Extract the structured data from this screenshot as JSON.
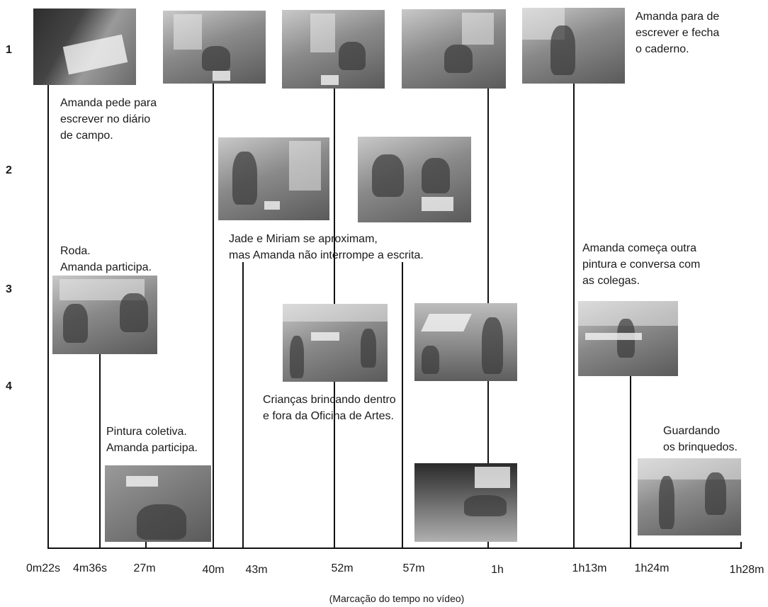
{
  "row_labels": [
    "1",
    "2",
    "3",
    "4"
  ],
  "time_ticks": [
    "0m22s",
    "4m36s",
    "27m",
    "40m",
    "43m",
    "52m",
    "57m",
    "1h",
    "1h13m",
    "1h24m",
    "1h28m"
  ],
  "captions": [
    "Amanda pede para\nescrever no diário\nde campo.",
    "Amanda para de\nescrever e fecha\no caderno.",
    "Jade e Miriam se aproximam,\nmas Amanda não interrompe a escrita.",
    "Roda.\nAmanda participa.",
    "Amanda começa outra\npintura e conversa com\nas colegas.",
    "Crianças brincando dentro\ne fora da Oficina de Artes.",
    "Pintura coletiva.\nAmanda participa.",
    "Guardando\nos brinquedos."
  ],
  "footnote": "(Marcação do tempo no vídeo)"
}
